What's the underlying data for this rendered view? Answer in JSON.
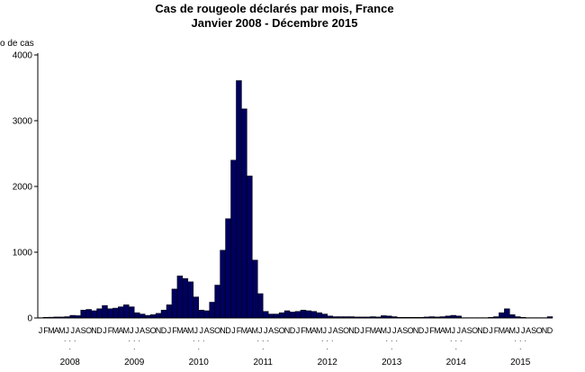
{
  "chart_data": {
    "type": "bar",
    "title": "Cas de rougeole déclarés par mois, France",
    "subtitle": "Janvier 2008 - Décembre 2015",
    "ylabel": "Nombre de cas",
    "ylabel_visible": "o de cas",
    "ylim": [
      0,
      4000
    ],
    "yticks": [
      0,
      1000,
      2000,
      3000,
      4000
    ],
    "bar_color": "#00005e",
    "month_letters": [
      "J",
      "F",
      "M",
      "A",
      "M",
      "J",
      "J",
      "A",
      "S",
      "O",
      "N",
      "D"
    ],
    "years": [
      "2008",
      "2009",
      "2010",
      "2011",
      "2012",
      "2013",
      "2014",
      "2015"
    ],
    "values": [
      5,
      10,
      12,
      15,
      15,
      20,
      40,
      35,
      120,
      130,
      110,
      140,
      190,
      140,
      150,
      170,
      200,
      170,
      80,
      60,
      40,
      50,
      70,
      120,
      200,
      440,
      640,
      600,
      550,
      320,
      120,
      110,
      240,
      500,
      1030,
      1510,
      2400,
      3610,
      3180,
      2160,
      880,
      370,
      100,
      60,
      60,
      80,
      110,
      90,
      100,
      120,
      110,
      100,
      80,
      60,
      30,
      20,
      20,
      20,
      20,
      15,
      15,
      15,
      20,
      15,
      35,
      30,
      20,
      10,
      10,
      10,
      10,
      10,
      15,
      20,
      15,
      20,
      30,
      40,
      30,
      5,
      5,
      5,
      5,
      5,
      10,
      20,
      80,
      140,
      50,
      20,
      10,
      5,
      5,
      5,
      5,
      20
    ]
  }
}
